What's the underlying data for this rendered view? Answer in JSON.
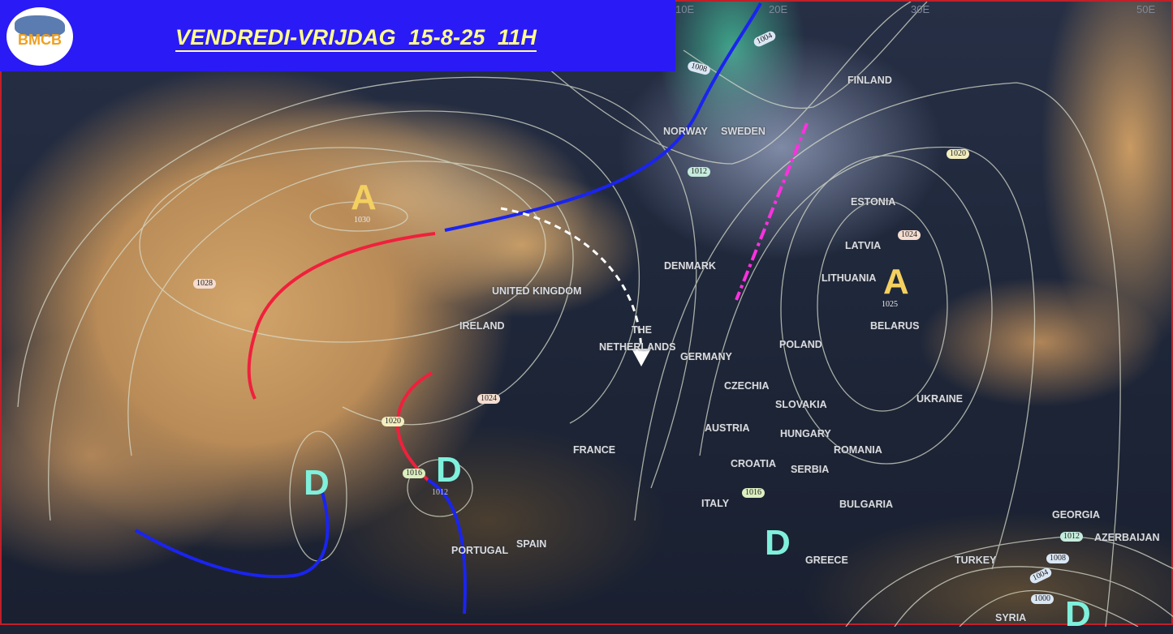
{
  "header": {
    "title": "VENDREDI-VRIJDAG  15-8-25  11H",
    "logo_text": "BMCB",
    "background": "#2a1af5",
    "title_color": "#ffff8c"
  },
  "grid_labels": [
    "10E",
    "20E",
    "30E",
    "50E"
  ],
  "countries": {
    "finland": "FINLAND",
    "norway": "NORWAY",
    "sweden": "SWEDEN",
    "estonia": "ESTONIA",
    "latvia": "LATVIA",
    "lithuania": "LITHUANIA",
    "belarus": "BELARUS",
    "denmark": "DENMARK",
    "uk": "UNITED KINGDOM",
    "ireland": "IRELAND",
    "netherlands_1": "THE",
    "netherlands_2": "NETHERLANDS",
    "germany": "GERMANY",
    "poland": "POLAND",
    "czechia": "CZECHIA",
    "slovakia": "SLOVAKIA",
    "ukraine": "UKRAINE",
    "hungary": "HUNGARY",
    "austria": "AUSTRIA",
    "romania": "ROMANIA",
    "france": "FRANCE",
    "croatia": "CROATIA",
    "serbia": "SERBIA",
    "italy": "ITALY",
    "bulgaria": "BULGARIA",
    "spain": "SPAIN",
    "portugal": "PORTUGAL",
    "greece": "GREECE",
    "turkey": "TURKEY",
    "georgia": "GEORGIA",
    "azerbaijan": "AZERBAIJAN",
    "syria": "SYRIA"
  },
  "pressure_labels": {
    "p1004n": "1004",
    "p1008n": "1008",
    "p1012n": "1012",
    "p1020": "1020",
    "p1024e": "1024",
    "p1025": "1025",
    "p1030": "1030",
    "p1028": "1028",
    "p1024w": "1024",
    "p1020w": "1020",
    "p1016w": "1016",
    "p1012w": "1012",
    "p1016i": "1016",
    "p1012t": "1012",
    "p1008t": "1008",
    "p1004t": "1004",
    "p1000t": "1000"
  },
  "systems": {
    "high_atlantic": "A",
    "high_belarus": "A",
    "low_atlantic": "D",
    "low_biscay": "D",
    "low_greece": "D",
    "low_syria": "D"
  },
  "colors": {
    "high": "#f3d060",
    "low": "#7ff0dc",
    "warm_front": "#f0203c",
    "cold_front": "#1a24f0",
    "trough": "#ff30e0",
    "arrow": "#ffffff"
  }
}
